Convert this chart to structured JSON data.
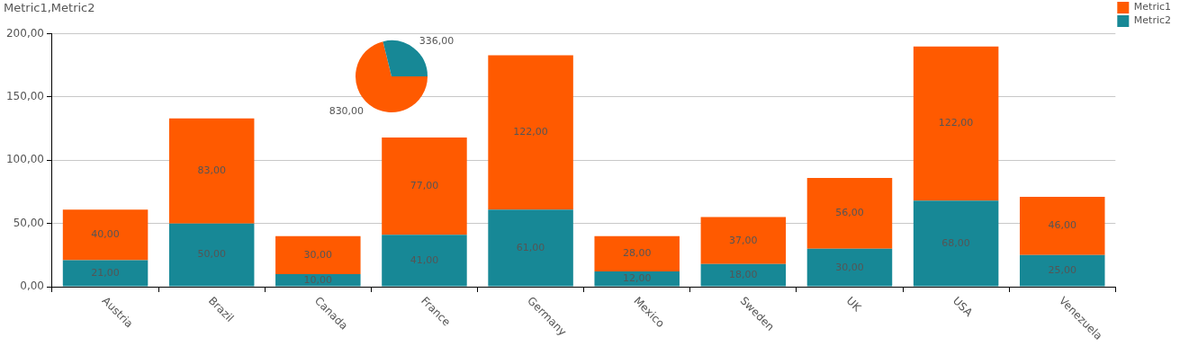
{
  "chart_data": [
    {
      "type": "bar",
      "title": "Metric1,Metric2",
      "stacked": true,
      "categories": [
        "Austria",
        "Brazil",
        "Canada",
        "France",
        "Germany",
        "Mexico",
        "Sweden",
        "UK",
        "USA",
        "Venezuela"
      ],
      "series": [
        {
          "name": "Metric2",
          "color": "#178896",
          "values": [
            21,
            50,
            10,
            41,
            61,
            12,
            18,
            30,
            68,
            25
          ],
          "value_labels": [
            "21,00",
            "50,00",
            "10,00",
            "41,00",
            "61,00",
            "12,00",
            "18,00",
            "30,00",
            "68,00",
            "25,00"
          ]
        },
        {
          "name": "Metric1",
          "color": "#ff5a00",
          "values": [
            40,
            83,
            30,
            77,
            122,
            28,
            37,
            56,
            122,
            46
          ],
          "value_labels": [
            "40,00",
            "83,00",
            "30,00",
            "77,00",
            "122,00",
            "28,00",
            "37,00",
            "56,00",
            "122,00",
            "46,00"
          ]
        }
      ],
      "ylim": [
        0,
        200
      ],
      "yticks": [
        {
          "value": 0,
          "label": "0,00"
        },
        {
          "value": 50,
          "label": "50,00"
        },
        {
          "value": 100,
          "label": "100,00"
        },
        {
          "value": 150,
          "label": "150,00"
        },
        {
          "value": 200,
          "label": "200,00"
        }
      ],
      "grid": "y",
      "legend": "top right"
    },
    {
      "type": "pie",
      "values": [
        830,
        336
      ],
      "colors": [
        "#ff5a00",
        "#178896"
      ],
      "value_labels": [
        "830,00",
        "336,00"
      ]
    }
  ]
}
